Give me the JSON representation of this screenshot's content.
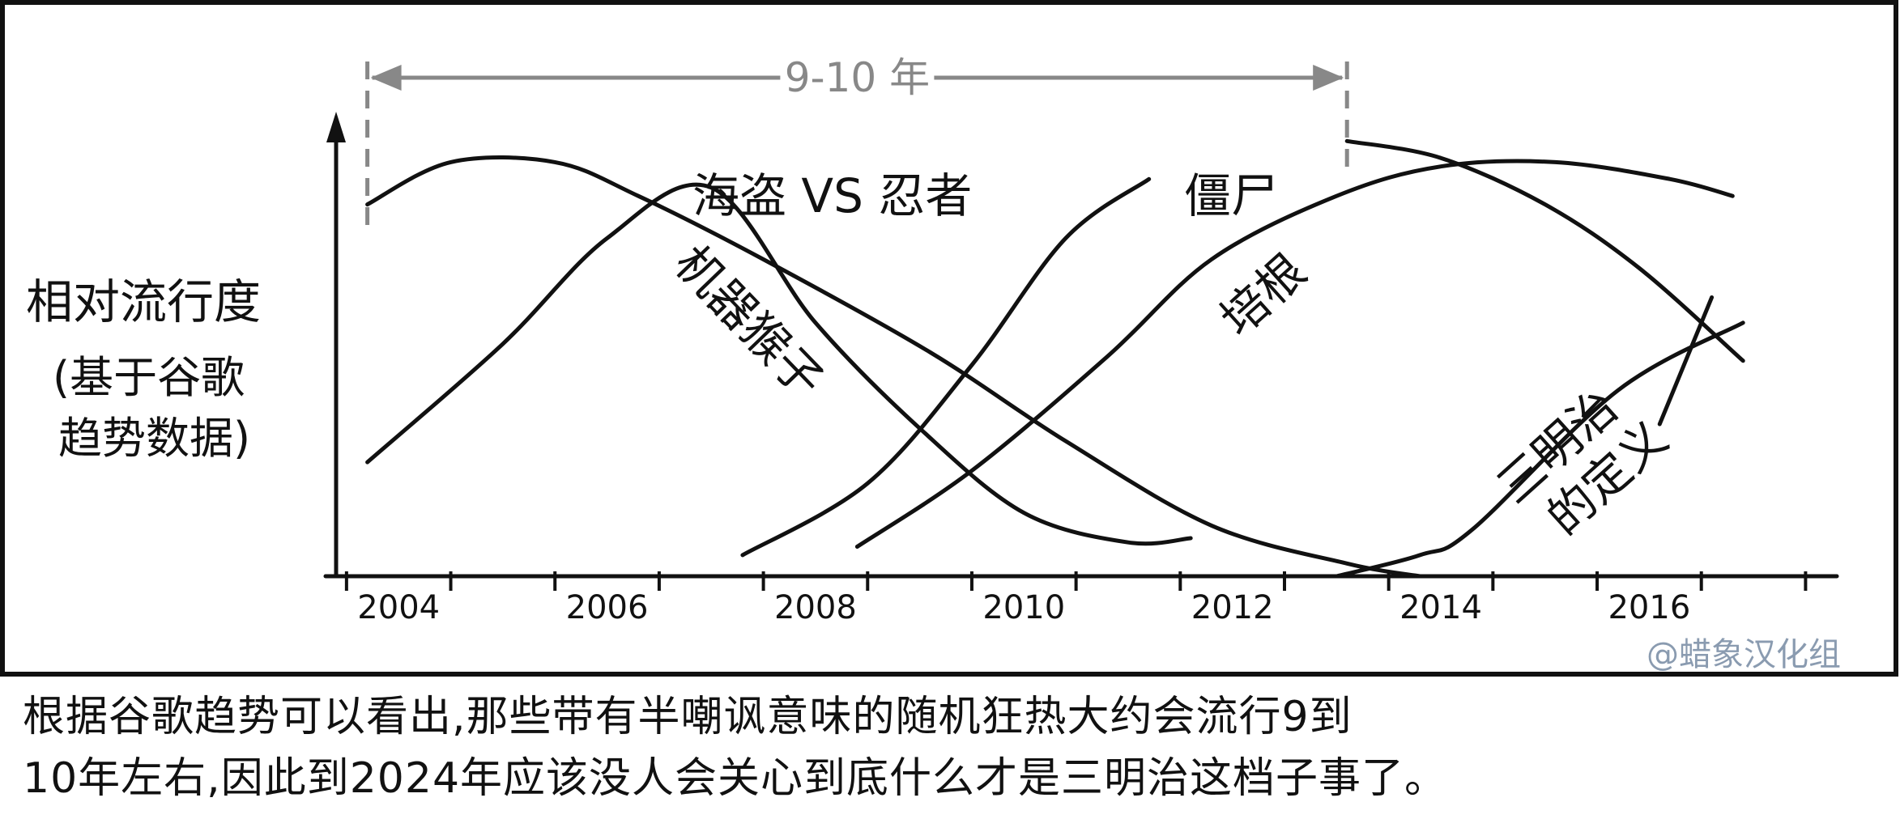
{
  "chart_data": {
    "type": "line",
    "ylabel_lines": [
      "相对流行度",
      "(基于谷歌",
      "趋势数据)"
    ],
    "x_ticks": [
      "2004",
      "2006",
      "2008",
      "2010",
      "2012",
      "2014",
      "2016"
    ],
    "xlim": [
      2003.9,
      2018.3
    ],
    "ylim": [
      0,
      100
    ],
    "span_annotation": {
      "label": "9-10 年",
      "from": 2004.2,
      "to": 2013.6
    },
    "series": [
      {
        "name": "海盗 VS 忍者",
        "points": [
          [
            2004.2,
            88
          ],
          [
            2005.0,
            98
          ],
          [
            2006.0,
            98
          ],
          [
            2006.8,
            90
          ],
          [
            2008.0,
            75
          ],
          [
            2009.6,
            53
          ],
          [
            2010.9,
            32
          ],
          [
            2012.3,
            12
          ],
          [
            2013.6,
            3
          ],
          [
            2014.3,
            0
          ]
        ]
      },
      {
        "name": "机器猴子",
        "points": [
          [
            2004.2,
            27
          ],
          [
            2005.5,
            55
          ],
          [
            2006.5,
            80
          ],
          [
            2007.5,
            92
          ],
          [
            2008.5,
            60
          ],
          [
            2009.5,
            35
          ],
          [
            2010.5,
            15
          ],
          [
            2011.5,
            8
          ],
          [
            2012.1,
            9
          ]
        ]
      },
      {
        "name": "僵尸",
        "points": [
          [
            2007.8,
            5
          ],
          [
            2009.0,
            22
          ],
          [
            2010.0,
            50
          ],
          [
            2010.9,
            80
          ],
          [
            2011.7,
            94
          ]
        ]
      },
      {
        "name": "培根",
        "points": [
          [
            2008.9,
            7
          ],
          [
            2010.0,
            25
          ],
          [
            2011.3,
            52
          ],
          [
            2012.3,
            75
          ],
          [
            2013.5,
            90
          ],
          [
            2014.5,
            97
          ],
          [
            2015.6,
            98
          ],
          [
            2016.7,
            94
          ],
          [
            2017.3,
            90
          ]
        ]
      },
      {
        "name": "三明治的定义",
        "points": [
          [
            2013.5,
            0
          ],
          [
            2014.3,
            5
          ],
          [
            2014.8,
            11
          ],
          [
            2016.2,
            44
          ],
          [
            2017.4,
            60
          ]
        ]
      },
      {
        "name": "",
        "points": [
          [
            2013.6,
            103
          ],
          [
            2014.5,
            99
          ],
          [
            2015.5,
            88
          ],
          [
            2016.4,
            73
          ],
          [
            2017.4,
            51
          ]
        ]
      }
    ],
    "watermark": "@蜡象汉化组"
  },
  "caption": {
    "line1": "根据谷歌趋势可以看出,那些带有半嘲讽意味的随机狂热大约会流行9到",
    "line2": "10年左右,因此到2024年应该没人会关心到底什么才是三明治这档子事了。"
  },
  "colors": {
    "ink": "#111111",
    "annotation": "#888888",
    "watermark": "#8a9bb0"
  }
}
